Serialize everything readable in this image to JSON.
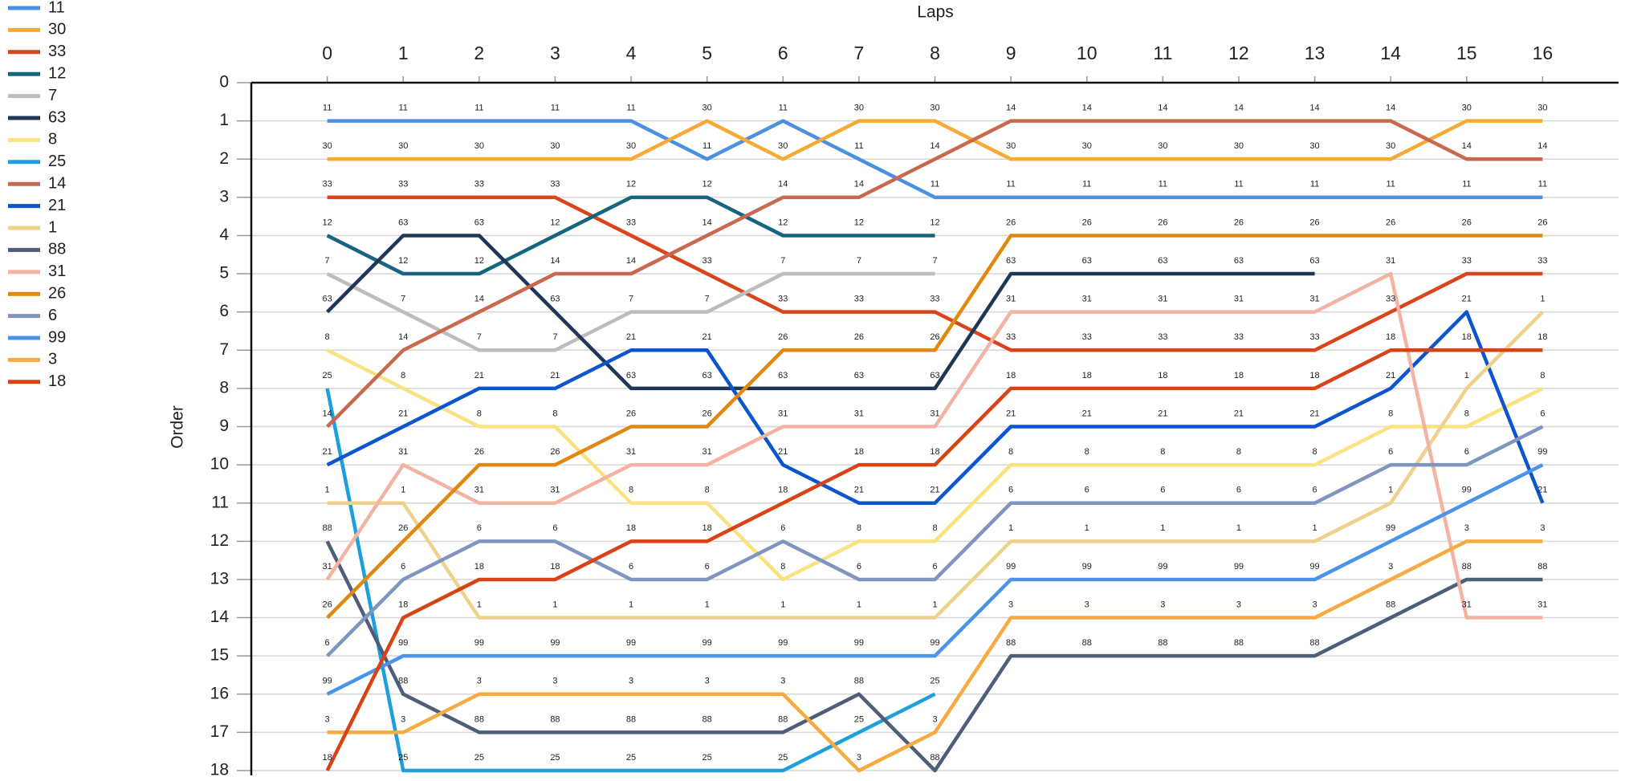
{
  "chart_data": {
    "type": "line",
    "x_label": "Laps",
    "y_label": "Order",
    "x": [
      0,
      1,
      2,
      3,
      4,
      5,
      6,
      7,
      8,
      9,
      10,
      11,
      12,
      13,
      14,
      15,
      16
    ],
    "xlim": [
      -1,
      17
    ],
    "xticks": [
      0,
      1,
      2,
      3,
      4,
      5,
      6,
      7,
      8,
      9,
      10,
      11,
      12,
      13,
      14,
      15,
      16
    ],
    "ylim": [
      0,
      18
    ],
    "yticks": [
      0,
      1,
      2,
      3,
      4,
      5,
      6,
      7,
      8,
      9,
      10,
      11,
      12,
      13,
      14,
      15,
      16,
      17,
      18
    ],
    "y_inverted": true,
    "grid": true,
    "legend": "top-left",
    "series": [
      {
        "name": "11",
        "color": "#4a8fe0",
        "values": [
          1,
          1,
          1,
          1,
          1,
          2,
          1,
          2,
          3,
          3,
          3,
          3,
          3,
          3,
          3,
          3,
          3
        ]
      },
      {
        "name": "30",
        "color": "#f7a935",
        "values": [
          2,
          2,
          2,
          2,
          2,
          1,
          2,
          1,
          1,
          2,
          2,
          2,
          2,
          2,
          2,
          1,
          1
        ]
      },
      {
        "name": "33",
        "color": "#d9441a",
        "values": [
          3,
          3,
          3,
          3,
          4,
          5,
          6,
          6,
          6,
          7,
          7,
          7,
          7,
          7,
          6,
          5,
          5
        ]
      },
      {
        "name": "12",
        "color": "#17647f",
        "values": [
          4,
          5,
          5,
          4,
          3,
          3,
          4,
          4,
          4,
          null,
          null,
          null,
          null,
          null,
          null,
          null,
          null
        ]
      },
      {
        "name": "7",
        "color": "#bdbdbd",
        "values": [
          5,
          6,
          7,
          7,
          6,
          6,
          5,
          5,
          5,
          null,
          null,
          null,
          null,
          null,
          null,
          null,
          null
        ]
      },
      {
        "name": "63",
        "color": "#1e3658",
        "values": [
          6,
          4,
          4,
          6,
          8,
          8,
          8,
          8,
          8,
          5,
          5,
          5,
          5,
          5,
          null,
          null,
          null
        ]
      },
      {
        "name": "8",
        "color": "#fae27e",
        "values": [
          7,
          8,
          9,
          9,
          11,
          11,
          13,
          12,
          12,
          10,
          10,
          10,
          10,
          10,
          9,
          9,
          8
        ]
      },
      {
        "name": "25",
        "color": "#1c9fdc",
        "values": [
          8,
          18,
          18,
          18,
          18,
          18,
          18,
          17,
          16,
          null,
          null,
          null,
          null,
          null,
          null,
          null,
          null
        ]
      },
      {
        "name": "14",
        "color": "#c8694f",
        "values": [
          9,
          7,
          6,
          5,
          5,
          4,
          3,
          3,
          2,
          1,
          1,
          1,
          1,
          1,
          1,
          2,
          2
        ]
      },
      {
        "name": "21",
        "color": "#0b55d1",
        "values": [
          10,
          9,
          8,
          8,
          7,
          7,
          10,
          11,
          11,
          9,
          9,
          9,
          9,
          9,
          8,
          6,
          11
        ]
      },
      {
        "name": "1",
        "color": "#f0d18b",
        "values": [
          11,
          11,
          14,
          14,
          14,
          14,
          14,
          14,
          14,
          12,
          12,
          12,
          12,
          12,
          11,
          8,
          6
        ]
      },
      {
        "name": "88",
        "color": "#4e5e78",
        "values": [
          12,
          16,
          17,
          17,
          17,
          17,
          17,
          16,
          18,
          15,
          15,
          15,
          15,
          15,
          14,
          13,
          13
        ]
      },
      {
        "name": "31",
        "color": "#f2b3a3",
        "values": [
          13,
          10,
          11,
          11,
          10,
          10,
          9,
          9,
          9,
          6,
          6,
          6,
          6,
          6,
          5,
          14,
          14
        ]
      },
      {
        "name": "26",
        "color": "#e0880f",
        "values": [
          14,
          12,
          10,
          10,
          9,
          9,
          7,
          7,
          7,
          4,
          4,
          4,
          4,
          4,
          4,
          4,
          4
        ]
      },
      {
        "name": "6",
        "color": "#7f94bf",
        "values": [
          15,
          13,
          12,
          12,
          13,
          13,
          12,
          13,
          13,
          11,
          11,
          11,
          11,
          11,
          10,
          10,
          9
        ]
      },
      {
        "name": "99",
        "color": "#4b92ea",
        "values": [
          16,
          15,
          15,
          15,
          15,
          15,
          15,
          15,
          15,
          13,
          13,
          13,
          13,
          13,
          12,
          11,
          10
        ]
      },
      {
        "name": "3",
        "color": "#f6ab40",
        "values": [
          17,
          17,
          16,
          16,
          16,
          16,
          16,
          18,
          17,
          14,
          14,
          14,
          14,
          14,
          13,
          12,
          12
        ]
      },
      {
        "name": "18",
        "color": "#d84315",
        "values": [
          18,
          14,
          13,
          13,
          12,
          12,
          11,
          10,
          10,
          8,
          8,
          8,
          8,
          8,
          7,
          7,
          7
        ]
      }
    ]
  }
}
